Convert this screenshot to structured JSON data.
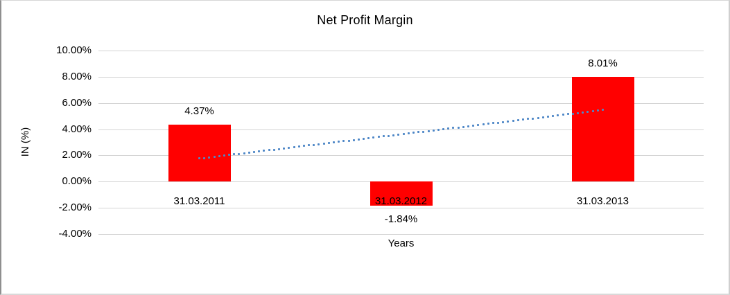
{
  "window": {
    "background": "#ffffff",
    "frame_border_color": "#8f8f8f",
    "text_color": "#000000"
  },
  "chart_data": {
    "type": "bar",
    "title": "Net Profit Margin",
    "xlabel": "Years",
    "ylabel": "IN (%)",
    "categories": [
      "31.03.2011",
      "31.03.2012",
      "31.03.2013"
    ],
    "values": [
      4.37,
      -1.84,
      8.01
    ],
    "bar_labels": [
      "4.37%",
      "-1.84%",
      "8.01%"
    ],
    "yticks": [
      "10.00%",
      "8.00%",
      "6.00%",
      "4.00%",
      "2.00%",
      "0.00%",
      "-2.00%",
      "-4.00%"
    ],
    "ytick_values": [
      10,
      8,
      6,
      4,
      2,
      0,
      -2,
      -4
    ],
    "ylim": [
      -4,
      10
    ],
    "grid": true,
    "legend": "none",
    "bar_color": "#ff0000",
    "gridline_color": "#d3d3d3",
    "trendline": {
      "style": "dotted",
      "color": "#4e87c7",
      "start": {
        "category_index": 0,
        "value": 1.76
      },
      "end": {
        "category_index": 2,
        "value": 5.46
      }
    }
  }
}
